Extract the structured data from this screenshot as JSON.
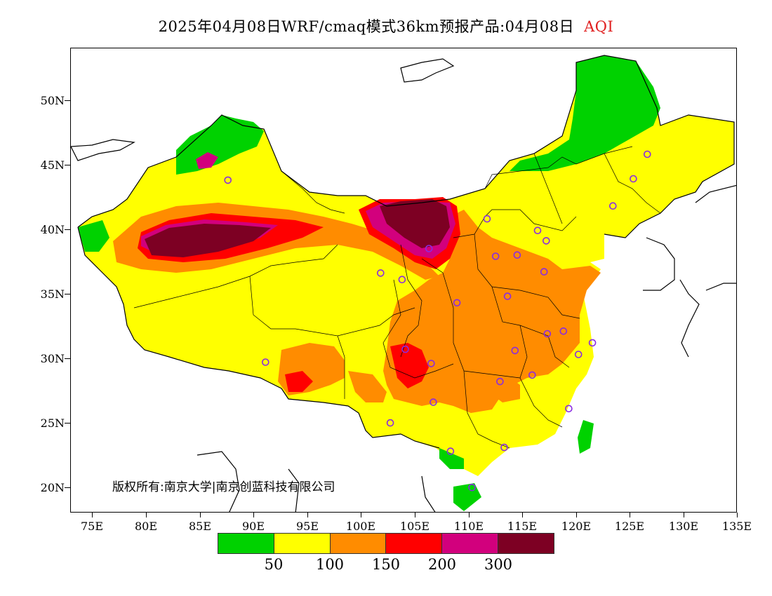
{
  "title": {
    "main": "2025年04月08日WRF/cmaq模式36km预报产品:04月08日",
    "variable": "AQI"
  },
  "axes": {
    "lat_labels": [
      "50N",
      "45N",
      "40N",
      "35N",
      "30N",
      "25N",
      "20N"
    ],
    "lon_labels": [
      "75E",
      "80E",
      "85E",
      "90E",
      "95E",
      "100E",
      "105E",
      "110E",
      "115E",
      "120E",
      "125E",
      "130E",
      "135E"
    ]
  },
  "copyright": "版权所有:南京大学|南京创蓝科技有限公司",
  "legend": {
    "colors": [
      "#00d200",
      "#ffff00",
      "#ff8c00",
      "#ff0000",
      "#d2007d",
      "#7d0023"
    ],
    "labels": [
      "50",
      "100",
      "150",
      "200",
      "300"
    ],
    "levels": [
      "0-50",
      "50-100",
      "100-150",
      "150-200",
      "200-300",
      ">300"
    ]
  },
  "colors": {
    "title_accent": "#e02020",
    "station_marker": "#8a2be2",
    "border": "#000000"
  },
  "map": {
    "lon_range": [
      73,
      135
    ],
    "lat_range": [
      18,
      54
    ],
    "stations": [
      {
        "lon": 87.6,
        "lat": 43.8
      },
      {
        "lon": 106.3,
        "lat": 38.5
      },
      {
        "lon": 101.8,
        "lat": 36.6
      },
      {
        "lon": 103.8,
        "lat": 36.1
      },
      {
        "lon": 108.9,
        "lat": 34.3
      },
      {
        "lon": 111.7,
        "lat": 40.8
      },
      {
        "lon": 112.5,
        "lat": 37.9
      },
      {
        "lon": 114.5,
        "lat": 38.0
      },
      {
        "lon": 116.4,
        "lat": 39.9
      },
      {
        "lon": 117.2,
        "lat": 39.1
      },
      {
        "lon": 117.0,
        "lat": 36.7
      },
      {
        "lon": 113.6,
        "lat": 34.8
      },
      {
        "lon": 123.4,
        "lat": 41.8
      },
      {
        "lon": 125.3,
        "lat": 43.9
      },
      {
        "lon": 126.6,
        "lat": 45.8
      },
      {
        "lon": 117.3,
        "lat": 31.9
      },
      {
        "lon": 118.8,
        "lat": 32.1
      },
      {
        "lon": 121.5,
        "lat": 31.2
      },
      {
        "lon": 120.2,
        "lat": 30.3
      },
      {
        "lon": 114.3,
        "lat": 30.6
      },
      {
        "lon": 112.9,
        "lat": 28.2
      },
      {
        "lon": 115.9,
        "lat": 28.7
      },
      {
        "lon": 119.3,
        "lat": 26.1
      },
      {
        "lon": 113.3,
        "lat": 23.1
      },
      {
        "lon": 108.3,
        "lat": 22.8
      },
      {
        "lon": 110.3,
        "lat": 20.0
      },
      {
        "lon": 102.7,
        "lat": 25.0
      },
      {
        "lon": 106.7,
        "lat": 26.6
      },
      {
        "lon": 104.1,
        "lat": 30.7
      },
      {
        "lon": 106.5,
        "lat": 29.6
      },
      {
        "lon": 91.1,
        "lat": 29.7
      }
    ]
  }
}
